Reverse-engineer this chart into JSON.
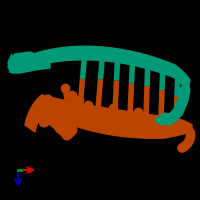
{
  "bg_color": "#000000",
  "teal_color": "#009977",
  "orange_color": "#BB4400",
  "teal2": "#00BB99",
  "axis_red": "#DD0000",
  "axis_blue": "#0000BB",
  "axis_green": "#009900",
  "figsize": [
    2.0,
    2.0
  ],
  "dpi": 100
}
